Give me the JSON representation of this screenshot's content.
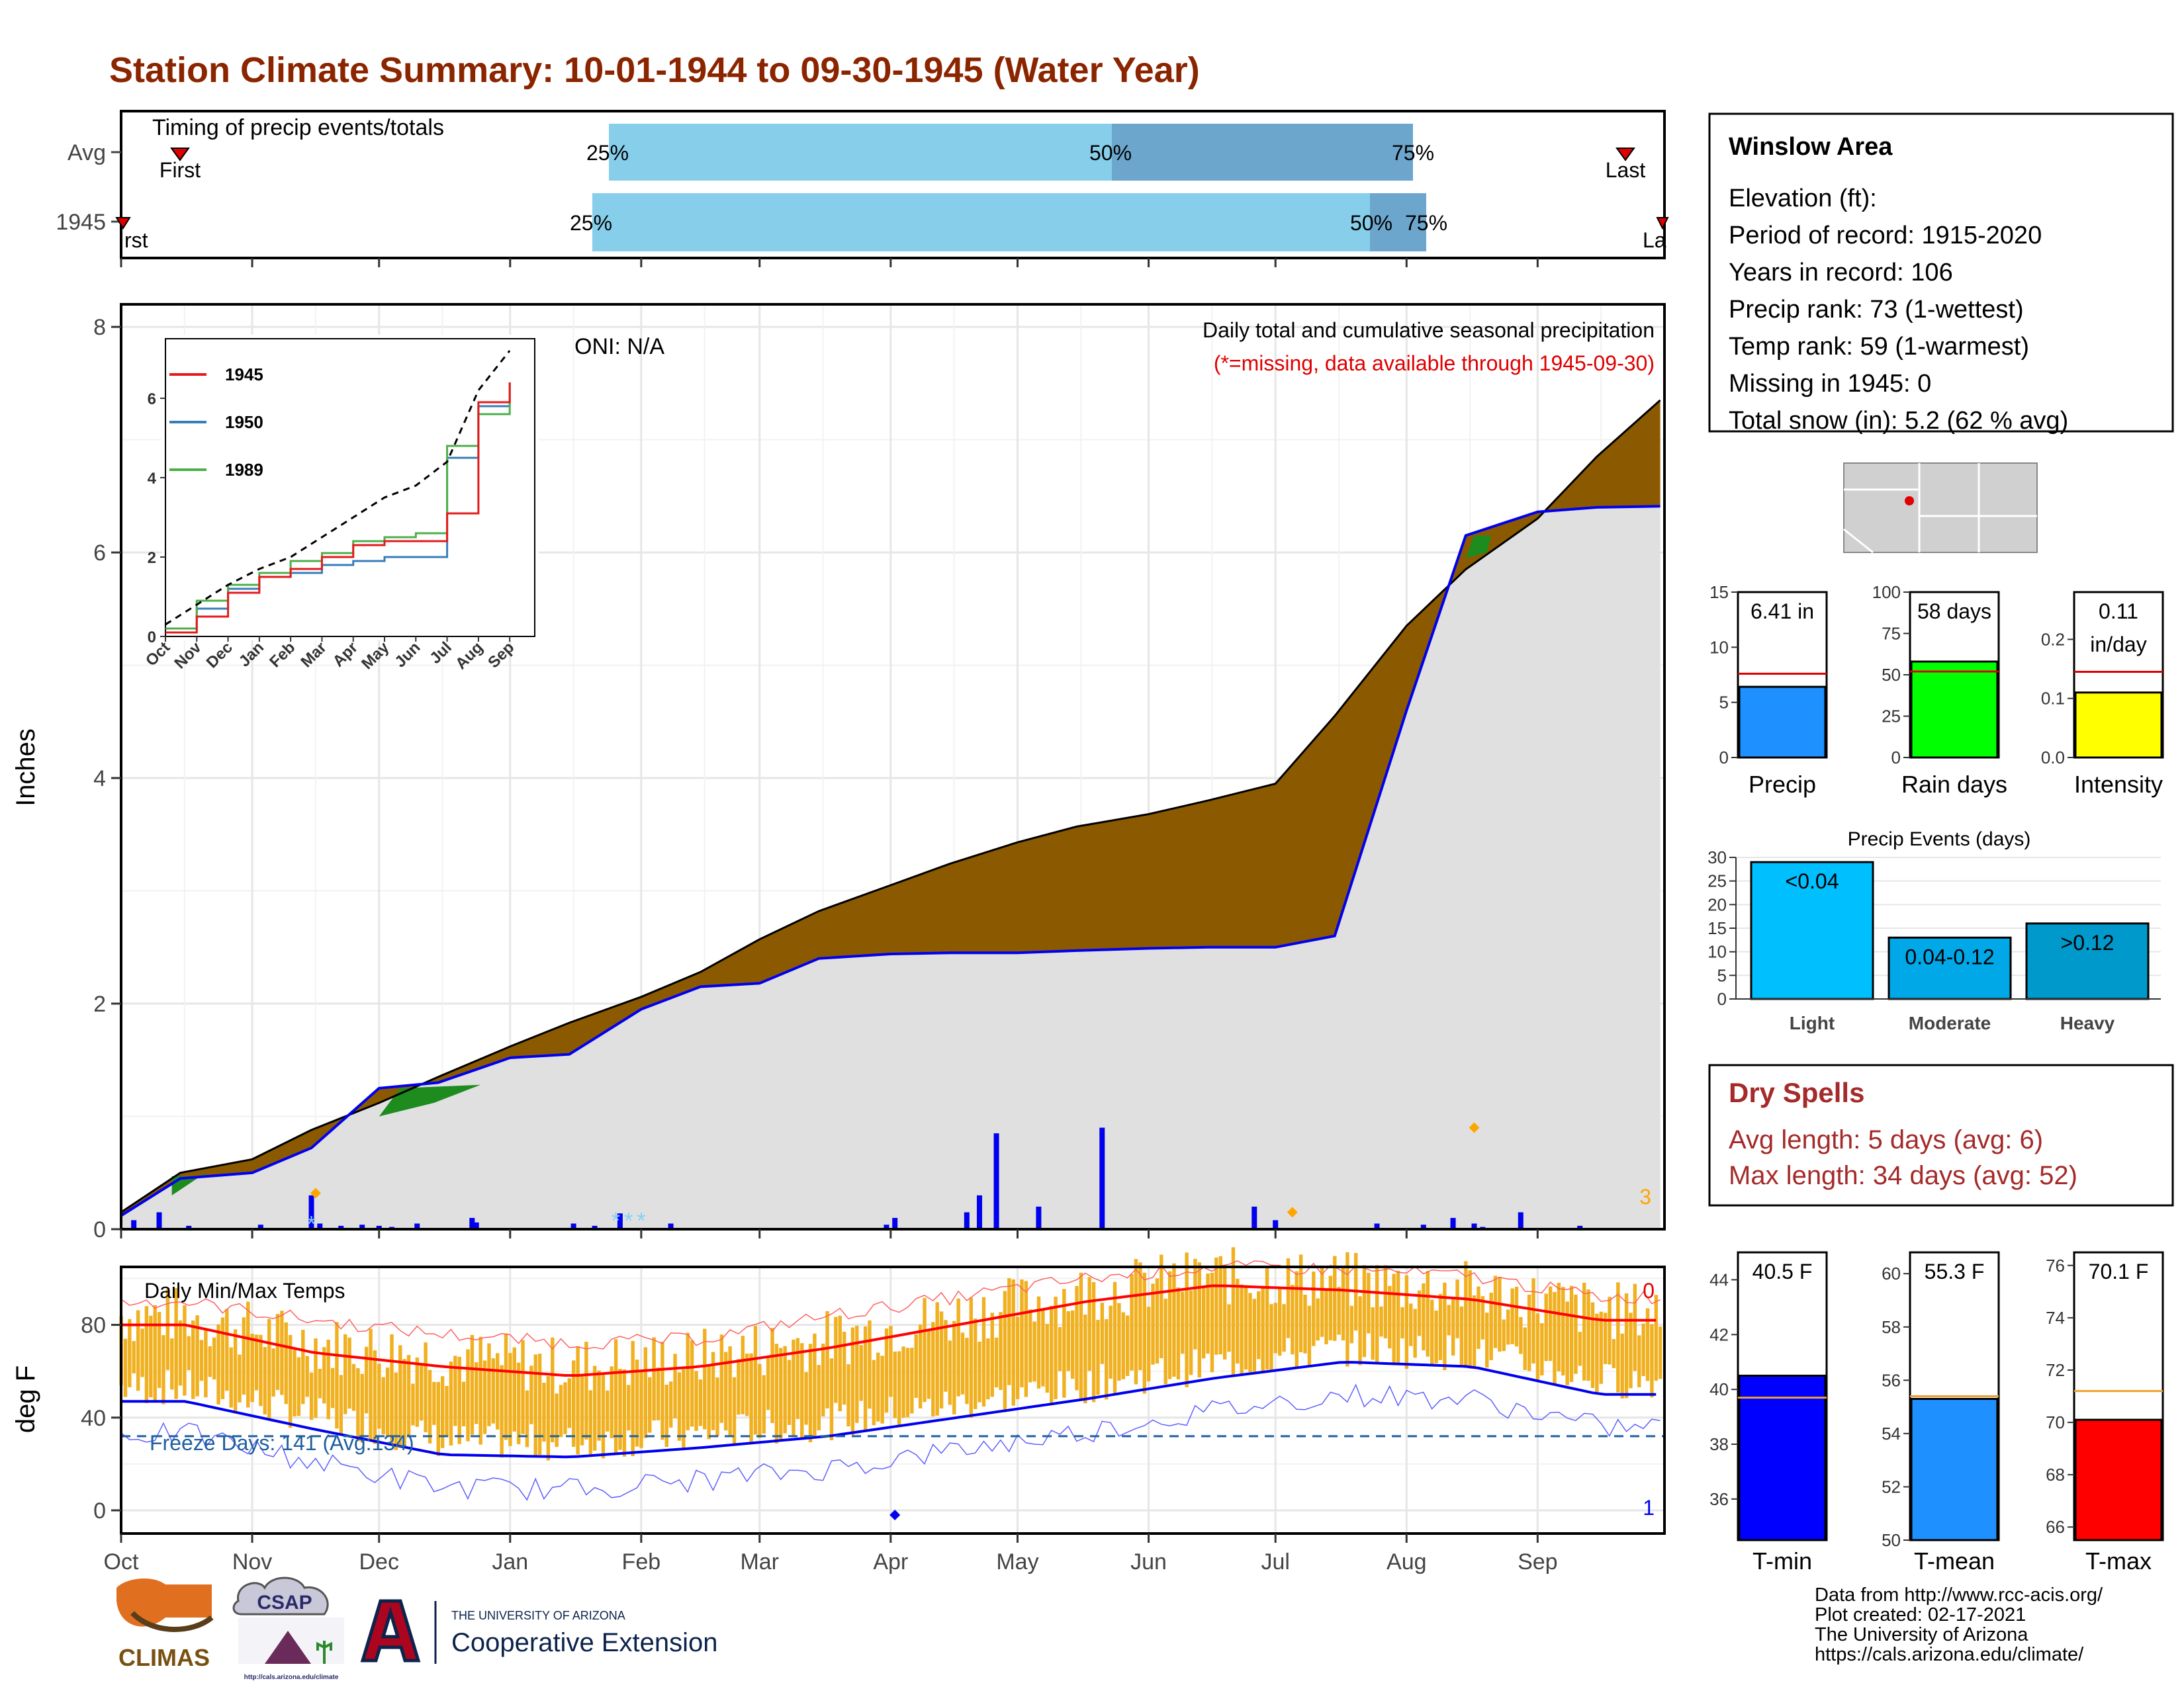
{
  "title": "Station Climate Summary: 10-01-1944 to 09-30-1945 (Water Year)",
  "months": [
    "Oct",
    "Nov",
    "Dec",
    "Jan",
    "Feb",
    "Mar",
    "Apr",
    "May",
    "Jun",
    "Jul",
    "Aug",
    "Sep"
  ],
  "timing": {
    "label": "Timing of precip events/totals",
    "rows": [
      "Avg",
      "1945"
    ],
    "first": "First",
    "last": "Last",
    "q25": "25%",
    "q50": "50%",
    "q75": "75%"
  },
  "main": {
    "ylabel": "Inches",
    "oni": "ONI: N/A",
    "subtitle": "Daily total and cumulative seasonal precipitation",
    "missing_note": "(*=missing, data available through 1945-09-30)",
    "corner_count": "3"
  },
  "inset": {
    "legend": [
      "1945",
      "1950",
      "1989"
    ],
    "colors": [
      "#e41a1c",
      "#377eb8",
      "#4daf4a"
    ]
  },
  "temps": {
    "label": "Daily Min/Max Temps",
    "ylabel": "deg F",
    "freeze": "Freeze Days: 141 (Avg:134)",
    "top_count": "0",
    "bottom_count": "1"
  },
  "station": {
    "name": "Winslow Area",
    "lines": [
      "Elevation (ft):",
      "Period of record: 1915-2020",
      "Years in record: 106",
      "Precip rank: 73 (1-wettest)",
      "Temp rank: 59 (1-warmest)",
      "Missing in 1945: 0",
      "Total snow (in): 5.2 (62 % avg)"
    ]
  },
  "mini_bars": [
    {
      "name": "Precip",
      "value_label": "6.41 in",
      "value": 6.41,
      "avg": 7.6,
      "ymax": 15,
      "ticks": [
        "0",
        "5",
        "10",
        "15"
      ],
      "tickvals": [
        0,
        5,
        10,
        15
      ],
      "color": "#1E90FF"
    },
    {
      "name": "Rain days",
      "value_label": "58 days",
      "value": 58,
      "avg": 52,
      "ymax": 100,
      "ticks": [
        "0",
        "25",
        "50",
        "75",
        "100"
      ],
      "tickvals": [
        0,
        25,
        50,
        75,
        100
      ],
      "color": "#00FF00"
    },
    {
      "name": "Intensity",
      "value_label": "0.11",
      "value_label2": "in/day",
      "value": 0.11,
      "avg": 0.145,
      "ymax": 0.28,
      "ticks": [
        "0.0",
        "0.1",
        "0.2"
      ],
      "tickvals": [
        0,
        0.1,
        0.2
      ],
      "color": "#FFFF00"
    }
  ],
  "events": {
    "title": "Precip Events (days)",
    "ticks": [
      "0",
      "5",
      "10",
      "15",
      "20",
      "25",
      "30"
    ],
    "bars": [
      {
        "cat": "Light",
        "label": "<0.04",
        "value": 29,
        "color": "#00BFFF"
      },
      {
        "cat": "Moderate",
        "label": "0.04-0.12",
        "value": 13,
        "color": "#00A8E8"
      },
      {
        "cat": "Heavy",
        "label": ">0.12",
        "value": 16,
        "color": "#0099CC"
      }
    ]
  },
  "dry": {
    "title": "Dry Spells",
    "avg": "Avg length: 5 days (avg: 6)",
    "max": "Max length: 34 days (avg: 52)"
  },
  "temp_bars": [
    {
      "name": "T-min",
      "value_label": "40.5 F",
      "value": 40.5,
      "avg": 39.7,
      "ymin": 34.5,
      "ymax": 45,
      "ticks": [
        "36",
        "38",
        "40",
        "42",
        "44"
      ],
      "tickvals": [
        36,
        38,
        40,
        42,
        44
      ],
      "color": "#0000FF"
    },
    {
      "name": "T-mean",
      "value_label": "55.3 F",
      "value": 55.3,
      "avg": 55.4,
      "ymin": 50,
      "ymax": 60.8,
      "ticks": [
        "50",
        "52",
        "54",
        "56",
        "58",
        "60"
      ],
      "tickvals": [
        50,
        52,
        54,
        56,
        58,
        60
      ],
      "color": "#1E90FF"
    },
    {
      "name": "T-max",
      "value_label": "70.1 F",
      "value": 70.1,
      "avg": 71.2,
      "ymin": 65.5,
      "ymax": 76.5,
      "ticks": [
        "66",
        "68",
        "70",
        "72",
        "74",
        "76"
      ],
      "tickvals": [
        66,
        68,
        70,
        72,
        74,
        76
      ],
      "color": "#FF0000"
    }
  ],
  "footer": {
    "lines": [
      "Data from http://www.rcc-acis.org/",
      "Plot created: 02-17-2021",
      "The University of Arizona",
      "https://cals.arizona.edu/climate/"
    ],
    "logo_climas": "CLIMAS",
    "logo_csap": "CSAP",
    "logo_csap_url": "http://cals.arizona.edu/climate",
    "ua_small": "THE UNIVERSITY OF ARIZONA",
    "ua_big": "Cooperative Extension"
  },
  "chart_data": {
    "type": "area",
    "title": "Daily total and cumulative seasonal precipitation",
    "xlabel": "",
    "ylabel": "Inches",
    "ylim": [
      0,
      8.2
    ],
    "x": [
      "10-01",
      "10-15",
      "11-01",
      "11-15",
      "12-01",
      "12-15",
      "01-01",
      "01-15",
      "02-01",
      "02-15",
      "03-01",
      "03-15",
      "04-01",
      "04-15",
      "05-01",
      "05-15",
      "06-01",
      "06-15",
      "07-01",
      "07-15",
      "08-01",
      "08-15",
      "09-01",
      "09-15",
      "09-30"
    ],
    "series": [
      {
        "values": [
          0.15,
          0.5,
          0.62,
          0.88,
          1.12,
          1.35,
          1.62,
          1.83,
          2.06,
          2.28,
          2.57,
          2.82,
          3.05,
          3.24,
          3.43,
          3.57,
          3.68,
          3.8,
          3.95,
          4.55,
          5.35,
          5.85,
          6.3,
          6.85,
          7.35
        ]
      },
      {
        "values": [
          0.12,
          0.45,
          0.5,
          0.72,
          1.25,
          1.3,
          1.52,
          1.55,
          1.95,
          2.15,
          2.18,
          2.4,
          2.44,
          2.45,
          2.45,
          2.47,
          2.49,
          2.5,
          2.5,
          2.6,
          4.6,
          6.15,
          6.36,
          6.4,
          6.41
        ]
      }
    ],
    "daily_precip_inches": [
      0.08,
      0.15,
      0.03,
      0.04,
      0.3,
      0.05,
      0.03,
      0.04,
      0.03,
      0.02,
      0.05,
      0.1,
      0.06,
      0.05,
      0.03,
      0.14,
      0.05,
      0.04,
      0.1,
      0.15,
      0.3,
      0.25,
      0.85,
      0.2,
      0.9,
      0.2,
      0.08,
      0.05,
      0.04,
      0.1,
      0.05,
      0.02,
      0.15,
      0.03
    ],
    "temps_deg_f": {
      "ylim": [
        -10,
        105
      ],
      "normal_max": [
        80,
        68,
        62,
        58,
        62,
        70,
        80,
        90,
        97,
        95,
        91,
        82
      ],
      "normal_min": [
        47,
        35,
        24,
        23,
        27,
        32,
        40,
        48,
        57,
        64,
        62,
        50
      ],
      "record_high": [
        90,
        82,
        76,
        72,
        74,
        84,
        92,
        100,
        105,
        104,
        101,
        92
      ]
    },
    "inset": {
      "ylim": [
        0,
        7.5
      ],
      "months": [
        "Oct",
        "Nov",
        "Dec",
        "Jan",
        "Feb",
        "Mar",
        "Apr",
        "May",
        "Jun",
        "Jul",
        "Aug",
        "Sep"
      ],
      "series": [
        {
          "name": "1945",
          "values": [
            0.1,
            0.5,
            1.1,
            1.5,
            1.7,
            2.0,
            2.3,
            2.4,
            2.4,
            3.1,
            5.9,
            6.4
          ]
        },
        {
          "name": "1950",
          "values": [
            0.2,
            0.7,
            1.2,
            1.5,
            1.6,
            1.8,
            1.9,
            2.0,
            2.0,
            4.5,
            5.8,
            6.4
          ]
        },
        {
          "name": "1989",
          "values": [
            0.2,
            0.9,
            1.3,
            1.6,
            1.9,
            2.1,
            2.4,
            2.5,
            2.6,
            4.8,
            5.6,
            6.4
          ]
        },
        {
          "name": "Avg",
          "values": [
            0.3,
            0.8,
            1.3,
            1.7,
            2.0,
            2.5,
            3.0,
            3.5,
            3.8,
            4.4,
            6.2,
            7.2
          ]
        }
      ]
    }
  }
}
